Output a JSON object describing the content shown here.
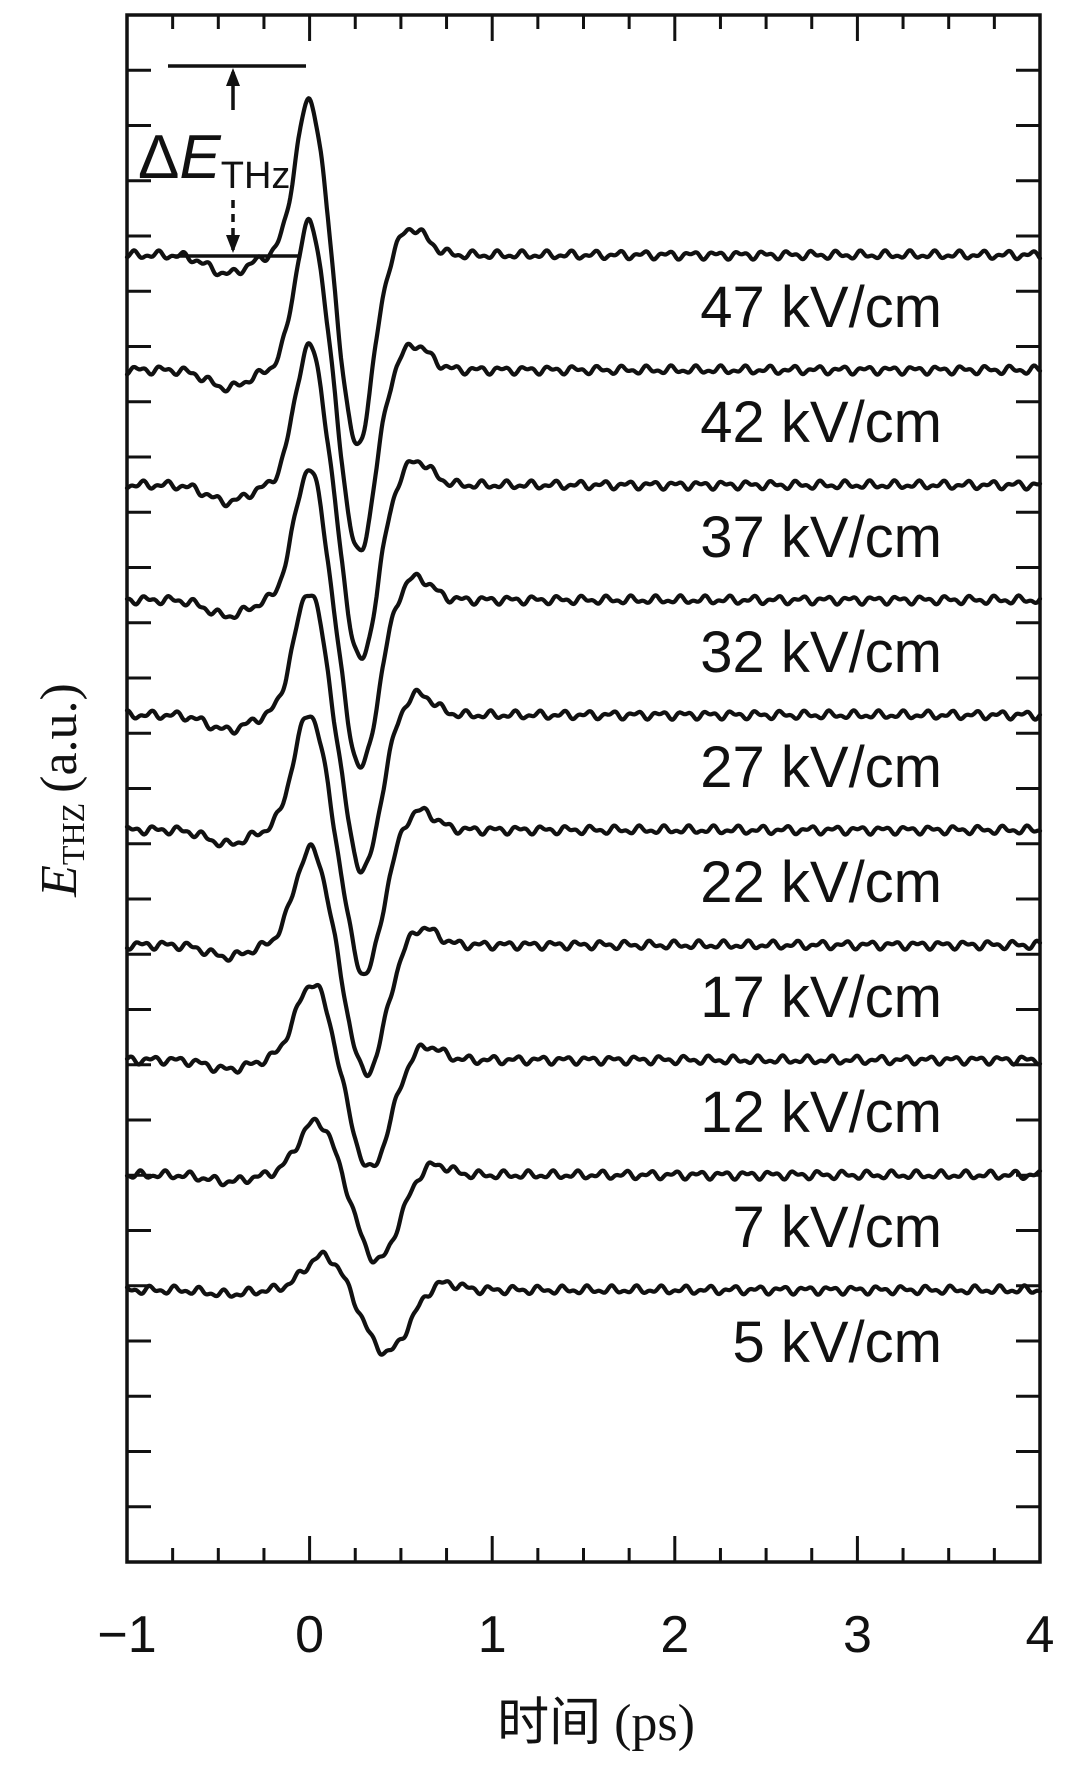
{
  "chart_data": {
    "type": "line",
    "xlabel": "时间 (ps)",
    "ylabel": "E",
    "ylabel_sub": "THZ",
    "ylabel_unit": "(a.u.)",
    "xlim": [
      -1,
      4
    ],
    "x_ticks": [
      "−1",
      "0",
      "1",
      "2",
      "3",
      "4"
    ],
    "annotation": {
      "prefix": "Δ",
      "symbol": "E",
      "sub": "THz"
    },
    "grid": false,
    "y_tick_labels": false,
    "series": [
      {
        "name": "47 kV/cm",
        "peak": 2.0,
        "trough": -2.45,
        "t_peak": 0.0,
        "t_trough": 0.26
      },
      {
        "name": "42 kV/cm",
        "peak": 1.9,
        "trough": -2.35,
        "t_peak": 0.0,
        "t_trough": 0.27
      },
      {
        "name": "37 kV/cm",
        "peak": 1.8,
        "trough": -2.25,
        "t_peak": 0.0,
        "t_trough": 0.28
      },
      {
        "name": "32 kV/cm",
        "peak": 1.7,
        "trough": -2.15,
        "t_peak": 0.0,
        "t_trough": 0.28
      },
      {
        "name": "27 kV/cm",
        "peak": 1.6,
        "trough": -2.0,
        "t_peak": 0.0,
        "t_trough": 0.29
      },
      {
        "name": "22 kV/cm",
        "peak": 1.5,
        "trough": -1.85,
        "t_peak": 0.0,
        "t_trough": 0.3
      },
      {
        "name": "17 kV/cm",
        "peak": 1.25,
        "trough": -1.65,
        "t_peak": 0.01,
        "t_trough": 0.31
      },
      {
        "name": "12 kV/cm",
        "peak": 1.0,
        "trough": -1.4,
        "t_peak": 0.02,
        "t_trough": 0.33
      },
      {
        "name": "7 kV/cm",
        "peak": 0.7,
        "trough": -1.1,
        "t_peak": 0.04,
        "t_trough": 0.37
      },
      {
        "name": "5 kV/cm",
        "peak": 0.45,
        "trough": -0.8,
        "t_peak": 0.08,
        "t_trough": 0.42
      }
    ]
  }
}
